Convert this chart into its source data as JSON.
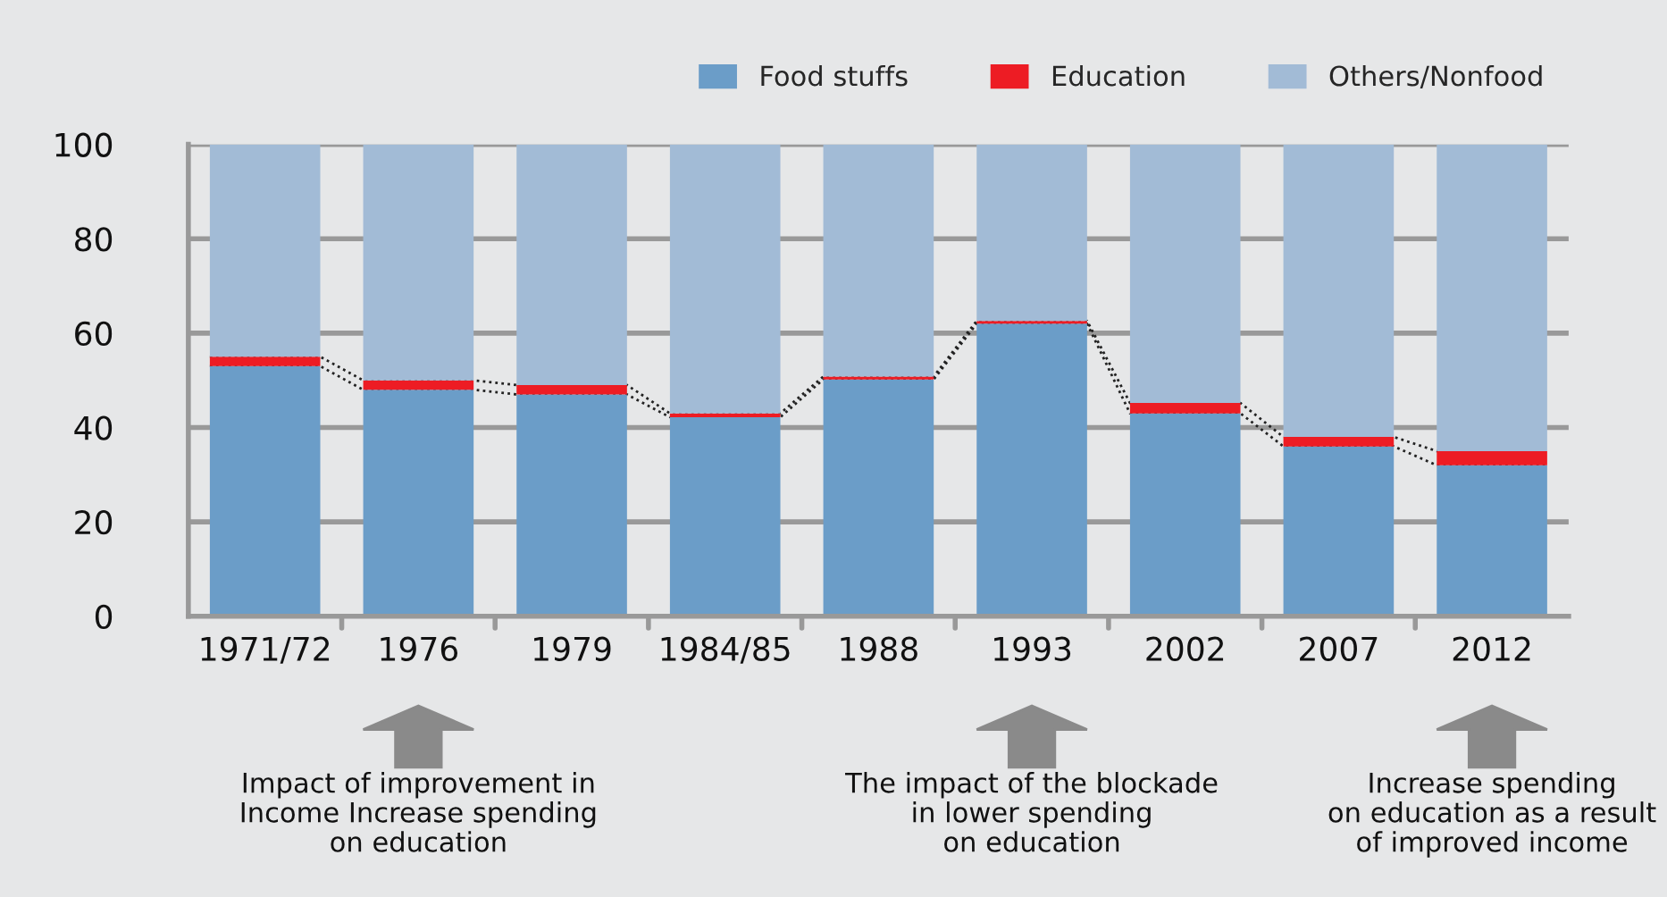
{
  "chart_data": {
    "type": "bar",
    "stacked": true,
    "categories": [
      "1971/72",
      "1976",
      "1979",
      "1984/85",
      "1988",
      "1993",
      "2002",
      "2007",
      "2012"
    ],
    "series": [
      {
        "name": "Food stuffs",
        "color": "#6b9dc8",
        "values": [
          53,
          48,
          47,
          42.2,
          50.2,
          62,
          43,
          36,
          32
        ]
      },
      {
        "name": "Education",
        "color": "#ed1c24",
        "values": [
          2,
          2,
          2,
          0.8,
          0.6,
          0.6,
          2.2,
          2,
          3
        ]
      },
      {
        "name": "Others/Nonfood",
        "color": "#a2bbd6",
        "values": [
          45,
          50,
          51,
          57,
          49.2,
          37.4,
          54.8,
          62,
          65
        ]
      }
    ],
    "ylim": [
      0,
      100
    ],
    "yticks": [
      0,
      20,
      40,
      60,
      80,
      100
    ],
    "grid": "y",
    "legend": "top right",
    "annotations": [
      "Impact of improvement in\nIncome Increase spending\non education",
      "The impact of the blockade\nin lower spending\non education",
      "Increase spending\non education as a result\nof improved income"
    ]
  }
}
